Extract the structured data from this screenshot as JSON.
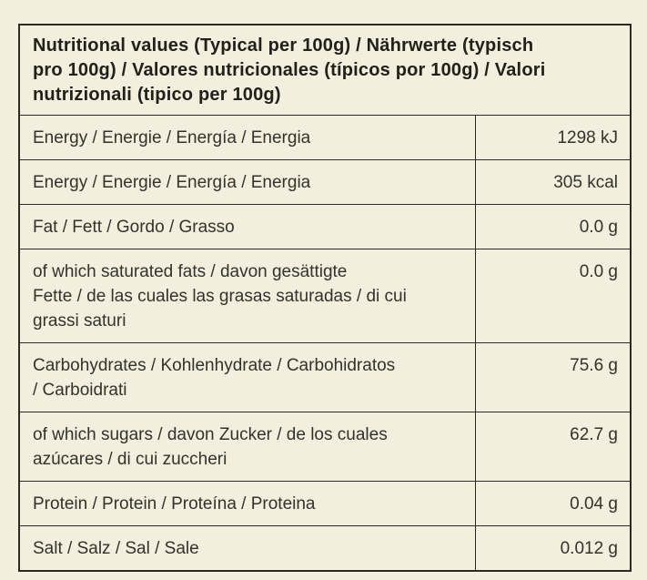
{
  "table": {
    "header": "Nutritional values (Typical per 100g) / Nährwerte (typisch\npro 100g) / Valores nutricionales (típicos por 100g) / Valori\nnutrizionali (tipico per 100g)",
    "rows": [
      {
        "label": "Energy / Energie / Energía / Energia",
        "value": "1298 kJ"
      },
      {
        "label": "Energy / Energie / Energía / Energia",
        "value": "305 kcal"
      },
      {
        "label": "Fat / Fett / Gordo / Grasso",
        "value": "0.0 g"
      },
      {
        "label": "of which saturated fats / davon gesättigte\nFette / de las cuales las grasas saturadas / di cui\ngrassi saturi",
        "value": "0.0 g"
      },
      {
        "label": "Carbohydrates / Kohlenhydrate / Carbohidratos\n/ Carboidrati",
        "value": "75.6 g"
      },
      {
        "label": "of which sugars / davon Zucker / de los cuales\nazúcares / di cui zuccheri",
        "value": "62.7 g"
      },
      {
        "label": "Protein / Protein / Proteína / Proteina",
        "value": "0.04 g"
      },
      {
        "label": "Salt / Salz / Sal / Sale",
        "value": "0.012 g"
      }
    ],
    "colors": {
      "background": "#f2efde",
      "border": "#2b2a24",
      "header_text": "#21201b",
      "body_text": "#33322b"
    }
  }
}
